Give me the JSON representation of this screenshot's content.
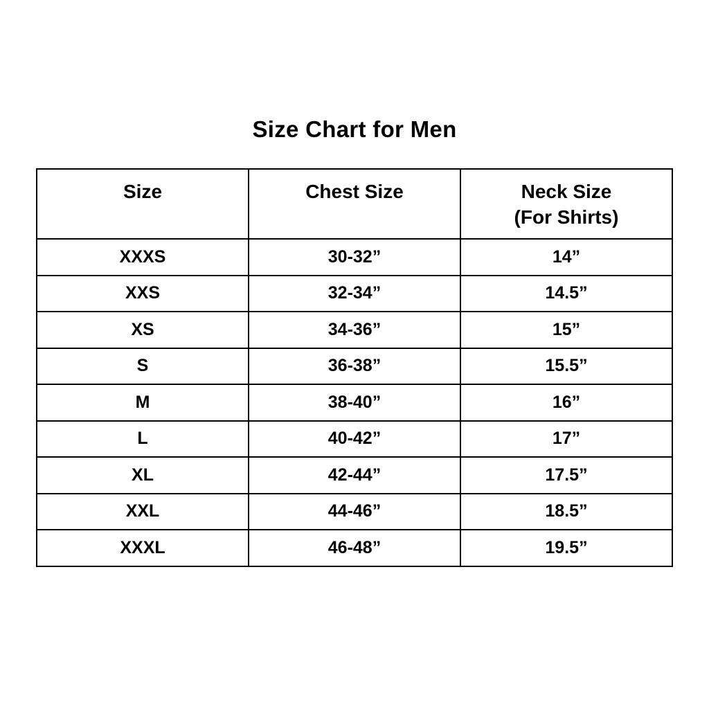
{
  "page": {
    "title": "Size Chart for Men"
  },
  "table": {
    "columns": [
      {
        "label": "Size"
      },
      {
        "label": "Chest Size"
      },
      {
        "label": "Neck Size",
        "sublabel": "(For Shirts)"
      }
    ]
  },
  "chart_data": {
    "type": "table",
    "title": "Size Chart for Men",
    "columns": [
      "Size",
      "Chest Size",
      "Neck Size (For Shirts)"
    ],
    "rows": [
      [
        "XXXS",
        "30-32”",
        "14”"
      ],
      [
        "XXS",
        "32-34”",
        "14.5”"
      ],
      [
        "XS",
        "34-36”",
        "15”"
      ],
      [
        "S",
        "36-38”",
        "15.5”"
      ],
      [
        "M",
        "38-40”",
        "16”"
      ],
      [
        "L",
        "40-42”",
        "17”"
      ],
      [
        "XL",
        "42-44”",
        "17.5”"
      ],
      [
        "XXL",
        "44-46”",
        "18.5”"
      ],
      [
        "XXXL",
        "46-48”",
        "19.5”"
      ]
    ],
    "layout": {
      "header_grid": true,
      "border_color": "#000000",
      "background_color": "#ffffff",
      "text_color": "#000000"
    }
  }
}
